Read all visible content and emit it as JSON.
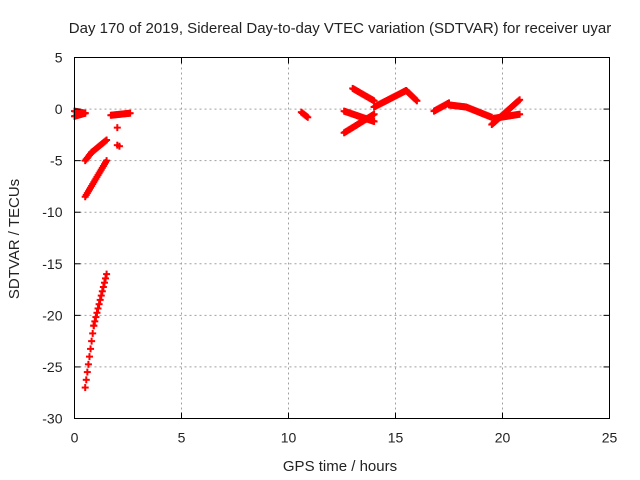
{
  "chart_data": {
    "type": "scatter",
    "title": "Day 170 of 2019, Sidereal Day-to-day VTEC variation (SDTVAR) for receiver uyar",
    "xlabel": "GPS time / hours",
    "ylabel": "SDTVAR / TECUs",
    "xlim": [
      0,
      25
    ],
    "ylim": [
      -30,
      5
    ],
    "xticks": [
      0,
      5,
      10,
      15,
      20,
      25
    ],
    "yticks": [
      -30,
      -25,
      -20,
      -15,
      -10,
      -5,
      0,
      5
    ],
    "grid": true,
    "marker": "+",
    "colors": {
      "series": "#ff0000",
      "grid": "#a0a0a0",
      "axis": "#000000"
    },
    "series": [
      {
        "name": "SDTVAR",
        "segments": [
          {
            "x": [
              0.0,
              0.5
            ],
            "y": [
              -0.7,
              -0.4
            ]
          },
          {
            "x": [
              0.0,
              0.5
            ],
            "y": [
              -0.2,
              -0.4
            ]
          },
          {
            "x": [
              0.5,
              0.8
            ],
            "y": [
              -5.0,
              -4.2
            ]
          },
          {
            "x": [
              0.8,
              1.5
            ],
            "y": [
              -4.2,
              -3.0
            ]
          },
          {
            "x": [
              0.5,
              1.5
            ],
            "y": [
              -8.5,
              -5.0
            ]
          },
          {
            "x": [
              0.5,
              0.9
            ],
            "y": [
              -27.0,
              -21.0
            ]
          },
          {
            "x": [
              0.9,
              1.5
            ],
            "y": [
              -21.0,
              -16.0
            ]
          },
          {
            "x": [
              1.7,
              2.6
            ],
            "y": [
              -0.6,
              -0.4
            ]
          },
          {
            "x": [
              10.6,
              10.9
            ],
            "y": [
              -0.3,
              -0.8
            ]
          },
          {
            "x": [
              12.6,
              14.0
            ],
            "y": [
              -2.3,
              -0.5
            ]
          },
          {
            "x": [
              12.6,
              14.0
            ],
            "y": [
              -0.2,
              -1.2
            ]
          },
          {
            "x": [
              13.0,
              14.0
            ],
            "y": [
              2.0,
              0.8
            ]
          },
          {
            "x": [
              14.0,
              15.5
            ],
            "y": [
              0.2,
              1.8
            ]
          },
          {
            "x": [
              15.5,
              16.0
            ],
            "y": [
              1.8,
              0.8
            ]
          },
          {
            "x": [
              16.8,
              17.5
            ],
            "y": [
              -0.2,
              0.6
            ]
          },
          {
            "x": [
              17.5,
              18.3
            ],
            "y": [
              0.4,
              0.2
            ]
          },
          {
            "x": [
              18.3,
              19.5
            ],
            "y": [
              0.2,
              -0.8
            ]
          },
          {
            "x": [
              19.5,
              20.8
            ],
            "y": [
              -1.5,
              0.9
            ]
          },
          {
            "x": [
              19.6,
              20.8
            ],
            "y": [
              -0.9,
              -0.5
            ]
          }
        ],
        "outliers": [
          {
            "x": 2.0,
            "y": -1.8
          },
          {
            "x": 2.1,
            "y": -3.6
          },
          {
            "x": 2.0,
            "y": -3.5
          }
        ]
      }
    ]
  }
}
